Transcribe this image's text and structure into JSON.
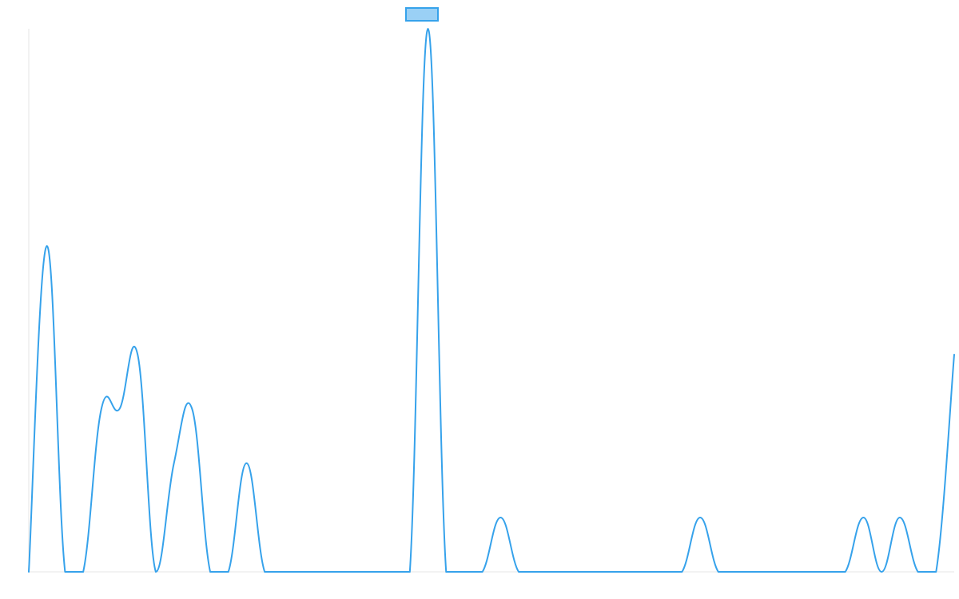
{
  "chart_data": {
    "type": "line",
    "title": "",
    "xlabel": "",
    "ylabel": "",
    "legend_position": "top-center",
    "grid": false,
    "ylim": [
      0,
      10
    ],
    "x": [
      0,
      1,
      2,
      3,
      4,
      5,
      6,
      7,
      8,
      9,
      10,
      11,
      12,
      13,
      14,
      15,
      16,
      17,
      18,
      19,
      20,
      21,
      22,
      23,
      24,
      25,
      26,
      27,
      28,
      29,
      30,
      31,
      32,
      33,
      34,
      35,
      36,
      37,
      38,
      39,
      40,
      41,
      42,
      43,
      44,
      45,
      46,
      47,
      48,
      49,
      50,
      51
    ],
    "series": [
      {
        "name": "",
        "color": "#36A2EB",
        "fill": "#9AD0F5",
        "values": [
          0,
          6,
          0,
          0,
          3,
          3,
          4,
          0,
          2,
          3,
          0,
          0,
          2,
          0,
          0,
          0,
          0,
          0,
          0,
          0,
          0,
          0,
          10,
          0,
          0,
          0,
          1,
          0,
          0,
          0,
          0,
          0,
          0,
          0,
          0,
          0,
          0,
          1,
          0,
          0,
          0,
          0,
          0,
          0,
          0,
          0,
          1,
          0,
          1,
          0,
          0,
          4
        ]
      }
    ]
  }
}
